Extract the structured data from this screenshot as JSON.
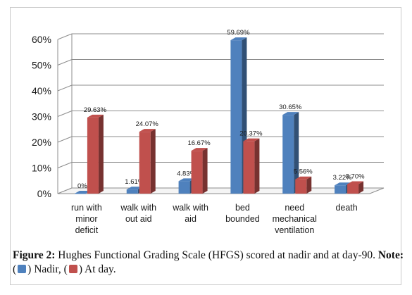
{
  "chart_data": {
    "type": "bar",
    "categories": [
      [
        "run with",
        "minor",
        "deficit"
      ],
      [
        "walk with",
        "out aid"
      ],
      [
        "walk with",
        "aid"
      ],
      [
        "bed",
        "bounded"
      ],
      [
        "need",
        "mechanical",
        "ventilation"
      ],
      [
        "death"
      ]
    ],
    "series": [
      {
        "name": "Nadir",
        "color": "#4f81bd",
        "values": [
          0,
          1.61,
          4.83,
          59.69,
          30.65,
          3.22
        ],
        "labels": [
          "0%",
          "1.61%",
          "4.83%",
          "59.69%",
          "30.65%",
          "3.22%"
        ]
      },
      {
        "name": "At day",
        "color": "#c0504d",
        "values": [
          29.63,
          24.07,
          16.67,
          20.37,
          5.56,
          3.7
        ],
        "labels": [
          "29.63%",
          "24.07%",
          "16.67%",
          "20.37%",
          "5.56%",
          "3.70%"
        ]
      }
    ],
    "ylim": [
      0,
      60
    ],
    "yticks": [
      "0%",
      "10%",
      "20%",
      "30%",
      "40%",
      "50%",
      "60%"
    ],
    "grid": true,
    "style": "3d"
  },
  "caption": {
    "figure_label": "Figure 2:",
    "text": " Hughes Functional Grading Scale (HFGS) scored at nadir and at day-90.",
    "note_label": "Note:",
    "nadir_text": ") Nadir,",
    "day_text": ") At day.",
    "open_paren": "("
  }
}
